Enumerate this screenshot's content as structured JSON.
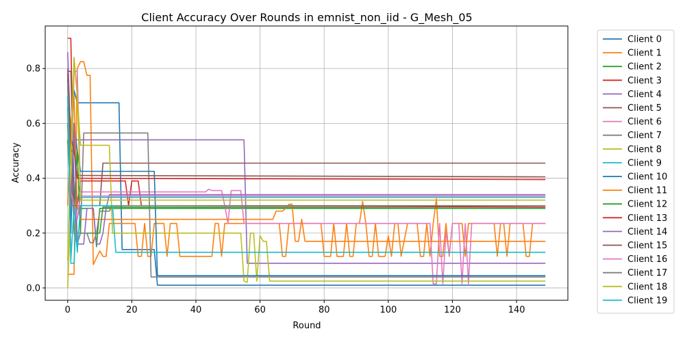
{
  "chart_data": {
    "type": "line",
    "title": "Client Accuracy Over Rounds in emnist_non_iid - G_Mesh_05",
    "xlabel": "Round",
    "ylabel": "Accuracy",
    "xlim": [
      -7,
      156
    ],
    "ylim": [
      -0.045,
      0.955
    ],
    "xticks": [
      0,
      20,
      40,
      60,
      80,
      100,
      120,
      140
    ],
    "yticks": [
      0.0,
      0.2,
      0.4,
      0.6,
      0.8
    ],
    "ytick_labels": [
      "0.0",
      "0.2",
      "0.4",
      "0.6",
      "0.8"
    ],
    "grid": true,
    "legend_position": "outside-right",
    "series": [
      {
        "name": "Client 0",
        "color": "#1f77b4",
        "points": [
          [
            0,
            0.76
          ],
          [
            1,
            0.45
          ],
          [
            2,
            0.72
          ],
          [
            3,
            0.675
          ],
          [
            16,
            0.675
          ],
          [
            17,
            0.14
          ],
          [
            27,
            0.14
          ],
          [
            28,
            0.01
          ],
          [
            149,
            0.01
          ]
        ]
      },
      {
        "name": "Client 1",
        "color": "#ff7f0e",
        "points": [
          [
            0,
            0.05
          ],
          [
            1,
            0.05
          ],
          [
            2,
            0.05
          ],
          [
            3,
            0.8
          ],
          [
            4,
            0.825
          ],
          [
            5,
            0.825
          ],
          [
            6,
            0.775
          ],
          [
            7,
            0.775
          ],
          [
            8,
            0.085
          ],
          [
            10,
            0.135
          ],
          [
            11,
            0.115
          ],
          [
            12,
            0.115
          ],
          [
            13,
            0.235
          ],
          [
            21,
            0.235
          ],
          [
            22,
            0.115
          ],
          [
            23,
            0.115
          ],
          [
            24,
            0.235
          ],
          [
            25,
            0.115
          ],
          [
            26,
            0.115
          ],
          [
            27,
            0.235
          ],
          [
            30,
            0.235
          ],
          [
            31,
            0.115
          ],
          [
            32,
            0.235
          ],
          [
            34,
            0.235
          ],
          [
            35,
            0.115
          ],
          [
            45,
            0.115
          ],
          [
            46,
            0.235
          ],
          [
            47,
            0.235
          ],
          [
            48,
            0.115
          ],
          [
            49,
            0.235
          ],
          [
            66,
            0.235
          ],
          [
            67,
            0.115
          ],
          [
            68,
            0.115
          ],
          [
            69,
            0.235
          ],
          [
            79,
            0.235
          ],
          [
            80,
            0.115
          ],
          [
            82,
            0.115
          ],
          [
            83,
            0.235
          ],
          [
            84,
            0.115
          ],
          [
            86,
            0.115
          ],
          [
            87,
            0.235
          ],
          [
            88,
            0.115
          ],
          [
            89,
            0.115
          ],
          [
            90,
            0.235
          ],
          [
            91,
            0.235
          ],
          [
            92,
            0.315
          ],
          [
            93,
            0.235
          ],
          [
            94,
            0.115
          ],
          [
            95,
            0.115
          ],
          [
            96,
            0.235
          ],
          [
            97,
            0.115
          ],
          [
            99,
            0.115
          ],
          [
            100,
            0.19
          ],
          [
            101,
            0.115
          ],
          [
            102,
            0.235
          ],
          [
            103,
            0.235
          ],
          [
            104,
            0.115
          ],
          [
            106,
            0.235
          ],
          [
            109,
            0.235
          ],
          [
            110,
            0.115
          ],
          [
            111,
            0.115
          ],
          [
            112,
            0.235
          ],
          [
            113,
            0.115
          ],
          [
            114,
            0.235
          ],
          [
            115,
            0.325
          ],
          [
            116,
            0.115
          ],
          [
            117,
            0.115
          ],
          [
            118,
            0.235
          ],
          [
            119,
            0.115
          ],
          [
            120,
            0.235
          ],
          [
            123,
            0.235
          ],
          [
            124,
            0.115
          ],
          [
            125,
            0.235
          ],
          [
            133,
            0.235
          ],
          [
            134,
            0.115
          ],
          [
            135,
            0.235
          ],
          [
            136,
            0.235
          ],
          [
            137,
            0.115
          ],
          [
            138,
            0.235
          ],
          [
            142,
            0.235
          ],
          [
            143,
            0.115
          ],
          [
            144,
            0.115
          ],
          [
            145,
            0.235
          ],
          [
            149,
            0.235
          ]
        ]
      },
      {
        "name": "Client 2",
        "color": "#2ca02c",
        "points": [
          [
            0,
            0.6
          ],
          [
            1,
            0.3
          ],
          [
            2,
            0.56
          ],
          [
            3,
            0.29
          ],
          [
            8,
            0.29
          ],
          [
            9,
            0.15
          ],
          [
            10,
            0.29
          ],
          [
            149,
            0.29
          ]
        ]
      },
      {
        "name": "Client 3",
        "color": "#d62728",
        "points": [
          [
            0,
            0.91
          ],
          [
            1,
            0.91
          ],
          [
            2,
            0.3
          ],
          [
            3,
            0.3
          ],
          [
            4,
            0.39
          ],
          [
            17,
            0.39
          ],
          [
            18,
            0.39
          ],
          [
            19,
            0.3
          ],
          [
            20,
            0.39
          ],
          [
            22,
            0.39
          ],
          [
            23,
            0.3
          ],
          [
            149,
            0.295
          ]
        ]
      },
      {
        "name": "Client 4",
        "color": "#9467bd",
        "points": [
          [
            0,
            0.86
          ],
          [
            1,
            0.54
          ],
          [
            2,
            0.54
          ],
          [
            3,
            0.54
          ],
          [
            55,
            0.54
          ],
          [
            56,
            0.09
          ],
          [
            149,
            0.09
          ]
        ]
      },
      {
        "name": "Client 5",
        "color": "#8c564b",
        "points": [
          [
            0,
            0.79
          ],
          [
            1,
            0.79
          ],
          [
            2,
            0.35
          ],
          [
            3,
            0.3
          ],
          [
            10,
            0.3
          ],
          [
            11,
            0.455
          ],
          [
            149,
            0.455
          ]
        ]
      },
      {
        "name": "Client 6",
        "color": "#e377c2",
        "points": [
          [
            0,
            0.7
          ],
          [
            1,
            0.3
          ],
          [
            2,
            0.79
          ],
          [
            3,
            0.79
          ],
          [
            4,
            0.35
          ],
          [
            43,
            0.35
          ],
          [
            44,
            0.36
          ],
          [
            45,
            0.355
          ],
          [
            48,
            0.355
          ],
          [
            49,
            0.3
          ],
          [
            50,
            0.235
          ],
          [
            51,
            0.355
          ],
          [
            54,
            0.355
          ],
          [
            55,
            0.235
          ],
          [
            113,
            0.235
          ],
          [
            114,
            0.015
          ],
          [
            115,
            0.015
          ],
          [
            116,
            0.235
          ],
          [
            117,
            0.015
          ],
          [
            118,
            0.205
          ],
          [
            119,
            0.12
          ],
          [
            120,
            0.235
          ],
          [
            122,
            0.235
          ],
          [
            123,
            0.015
          ],
          [
            124,
            0.235
          ],
          [
            125,
            0.015
          ],
          [
            126,
            0.235
          ],
          [
            149,
            0.235
          ]
        ]
      },
      {
        "name": "Client 7",
        "color": "#7f7f7f",
        "points": [
          [
            0,
            0.55
          ],
          [
            1,
            0.55
          ],
          [
            2,
            0.2
          ],
          [
            3,
            0.16
          ],
          [
            4,
            0.2
          ],
          [
            5,
            0.565
          ],
          [
            25,
            0.565
          ],
          [
            26,
            0.04
          ],
          [
            149,
            0.04
          ]
        ]
      },
      {
        "name": "Client 8",
        "color": "#bcbd22",
        "points": [
          [
            0,
            0.0
          ],
          [
            1,
            0.3
          ],
          [
            2,
            0.84
          ],
          [
            3,
            0.7
          ],
          [
            4,
            0.52
          ],
          [
            13,
            0.52
          ],
          [
            14,
            0.2
          ],
          [
            54,
            0.2
          ],
          [
            55,
            0.025
          ],
          [
            56,
            0.02
          ],
          [
            57,
            0.2
          ],
          [
            58,
            0.2
          ],
          [
            59,
            0.025
          ],
          [
            60,
            0.19
          ],
          [
            61,
            0.17
          ],
          [
            62,
            0.17
          ],
          [
            63,
            0.025
          ],
          [
            149,
            0.025
          ]
        ]
      },
      {
        "name": "Client 9",
        "color": "#17becf",
        "points": [
          [
            0,
            0.75
          ],
          [
            1,
            0.09
          ],
          [
            2,
            0.09
          ],
          [
            3,
            0.33
          ],
          [
            149,
            0.33
          ]
        ]
      },
      {
        "name": "Client 10",
        "color": "#1f77b4",
        "points": [
          [
            0,
            0.66
          ],
          [
            1,
            0.2
          ],
          [
            2,
            0.6
          ],
          [
            3,
            0.5
          ],
          [
            4,
            0.425
          ],
          [
            27,
            0.425
          ],
          [
            28,
            0.045
          ],
          [
            149,
            0.045
          ]
        ]
      },
      {
        "name": "Client 11",
        "color": "#ff7f0e",
        "points": [
          [
            0,
            0.3
          ],
          [
            1,
            0.6
          ],
          [
            2,
            0.7
          ],
          [
            3,
            0.3
          ],
          [
            4,
            0.25
          ],
          [
            11,
            0.25
          ],
          [
            12,
            0.25
          ],
          [
            64,
            0.25
          ],
          [
            65,
            0.28
          ],
          [
            67,
            0.28
          ],
          [
            68,
            0.29
          ],
          [
            69,
            0.305
          ],
          [
            70,
            0.305
          ],
          [
            71,
            0.17
          ],
          [
            72,
            0.17
          ],
          [
            73,
            0.25
          ],
          [
            74,
            0.17
          ],
          [
            149,
            0.17
          ]
        ]
      },
      {
        "name": "Client 12",
        "color": "#2ca02c",
        "points": [
          [
            0,
            0.54
          ],
          [
            1,
            0.3
          ],
          [
            2,
            0.3
          ],
          [
            3,
            0.5
          ],
          [
            4,
            0.2
          ],
          [
            10,
            0.2
          ],
          [
            11,
            0.295
          ],
          [
            149,
            0.29
          ]
        ]
      },
      {
        "name": "Client 13",
        "color": "#d62728",
        "points": [
          [
            0,
            0.8
          ],
          [
            1,
            0.5
          ],
          [
            2,
            0.5
          ],
          [
            3,
            0.4
          ],
          [
            149,
            0.395
          ]
        ]
      },
      {
        "name": "Client 14",
        "color": "#9467bd",
        "points": [
          [
            0,
            0.8
          ],
          [
            1,
            0.3
          ],
          [
            2,
            0.6
          ],
          [
            3,
            0.16
          ],
          [
            5,
            0.16
          ],
          [
            6,
            0.29
          ],
          [
            8,
            0.29
          ],
          [
            9,
            0.16
          ],
          [
            10,
            0.16
          ],
          [
            11,
            0.2
          ],
          [
            12,
            0.29
          ],
          [
            13,
            0.34
          ],
          [
            149,
            0.34
          ]
        ]
      },
      {
        "name": "Client 15",
        "color": "#8c564b",
        "points": [
          [
            0,
            0.78
          ],
          [
            1,
            0.55
          ],
          [
            2,
            0.5
          ],
          [
            3,
            0.41
          ],
          [
            149,
            0.405
          ]
        ]
      },
      {
        "name": "Client 16",
        "color": "#e377c2",
        "points": [
          [
            0,
            0.7
          ],
          [
            1,
            0.35
          ],
          [
            2,
            0.3
          ],
          [
            3,
            0.25
          ],
          [
            4,
            0.335
          ],
          [
            149,
            0.335
          ]
        ]
      },
      {
        "name": "Client 17",
        "color": "#7f7f7f",
        "points": [
          [
            0,
            0.75
          ],
          [
            1,
            0.3
          ],
          [
            2,
            0.3
          ],
          [
            3,
            0.2
          ],
          [
            4,
            0.2
          ],
          [
            5,
            0.2
          ],
          [
            6,
            0.2
          ],
          [
            7,
            0.165
          ],
          [
            8,
            0.165
          ],
          [
            9,
            0.2
          ],
          [
            10,
            0.28
          ],
          [
            11,
            0.28
          ],
          [
            12,
            0.28
          ],
          [
            13,
            0.28
          ],
          [
            14,
            0.3
          ],
          [
            15,
            0.3
          ],
          [
            149,
            0.3
          ]
        ]
      },
      {
        "name": "Client 18",
        "color": "#bcbd22",
        "points": [
          [
            0,
            0.1
          ],
          [
            1,
            0.5
          ],
          [
            2,
            0.84
          ],
          [
            3,
            0.7
          ],
          [
            4,
            0.32
          ],
          [
            149,
            0.32
          ]
        ]
      },
      {
        "name": "Client 19",
        "color": "#17becf",
        "points": [
          [
            0,
            0.7
          ],
          [
            1,
            0.1
          ],
          [
            2,
            0.3
          ],
          [
            3,
            0.13
          ],
          [
            4,
            0.3
          ],
          [
            12,
            0.3
          ],
          [
            13,
            0.3
          ],
          [
            14,
            0.3
          ],
          [
            15,
            0.13
          ],
          [
            149,
            0.13
          ]
        ]
      }
    ]
  }
}
